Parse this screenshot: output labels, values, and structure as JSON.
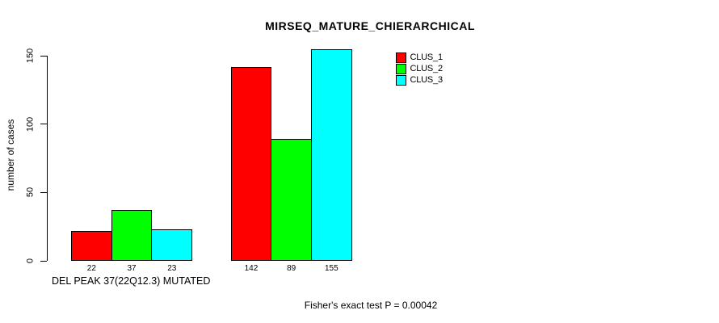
{
  "figure": {
    "background": "#ffffff",
    "text_color": "#000000"
  },
  "chart_data": {
    "type": "bar",
    "title": "MIRSEQ_MATURE_CHIERARCHICAL",
    "ylabel": "number of cases",
    "xlabel": "DEL PEAK 37(22Q12.3) MUTATED",
    "annotation": "Fisher's exact test P = 0.00042",
    "ylim": [
      0,
      155
    ],
    "yticks": [
      0,
      50,
      100,
      150
    ],
    "grid": false,
    "groups": 2,
    "series": [
      {
        "name": "CLUS_1",
        "color": "#ff0000",
        "values": [
          22,
          142
        ]
      },
      {
        "name": "CLUS_2",
        "color": "#00ff00",
        "values": [
          37,
          89
        ]
      },
      {
        "name": "CLUS_3",
        "color": "#00ffff",
        "values": [
          23,
          155
        ]
      }
    ],
    "bar_value_labels_shown": true,
    "legend_position": "top-right",
    "axis_color": "#000000",
    "bar_border_color": "#000000"
  }
}
